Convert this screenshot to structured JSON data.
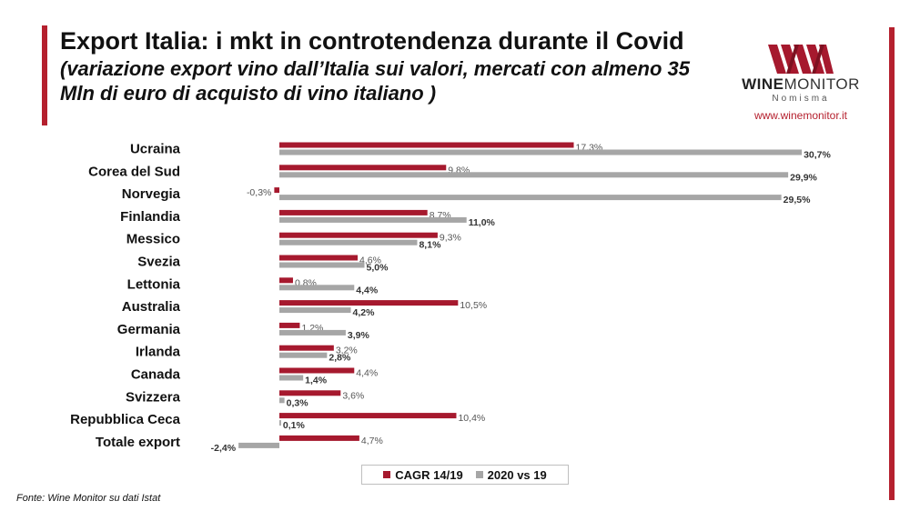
{
  "header": {
    "title": "Export Italia: i mkt in controtendenza durante il Covid",
    "subtitle": "(variazione export vino dall’Italia sui valori, mercati con almeno 35 Mln di euro di acquisto di vino italiano )"
  },
  "logo": {
    "name_bold": "WINE",
    "name_rest": "MONITOR",
    "sub": "Nomisma",
    "url": "www.winemonitor.it"
  },
  "source": "Fonte: Wine Monitor su dati Istat",
  "colors": {
    "cagr": "#a6192e",
    "vs19": "#a6a6a6",
    "accent": "#b5202e"
  },
  "chart_data": {
    "type": "bar",
    "orientation": "horizontal",
    "categories": [
      "Ucraina",
      "Corea del Sud",
      "Norvegia",
      "Finlandia",
      "Messico",
      "Svezia",
      "Lettonia",
      "Australia",
      "Germania",
      "Irlanda",
      "Canada",
      "Svizzera",
      "Repubblica Ceca",
      "Totale export"
    ],
    "series": [
      {
        "name": "CAGR 14/19",
        "values": [
          17.3,
          9.8,
          -0.3,
          8.7,
          9.3,
          4.6,
          0.8,
          10.5,
          1.2,
          3.2,
          4.4,
          3.6,
          10.4,
          4.7
        ],
        "labels": [
          "17,3%",
          "9,8%",
          "-0,3%",
          "8,7%",
          "9,3%",
          "4,6%",
          "0,8%",
          "10,5%",
          "1,2%",
          "3,2%",
          "4,4%",
          "3,6%",
          "10,4%",
          "4,7%"
        ]
      },
      {
        "name": "2020 vs 19",
        "values": [
          30.7,
          29.9,
          29.5,
          11.0,
          8.1,
          5.0,
          4.4,
          4.2,
          3.9,
          2.8,
          1.4,
          0.3,
          0.1,
          -2.4
        ],
        "labels": [
          "30,7%",
          "29,9%",
          "29,5%",
          "11,0%",
          "8,1%",
          "5,0%",
          "4,4%",
          "4,2%",
          "3,9%",
          "2,8%",
          "1,4%",
          "0,3%",
          "0,1%",
          "-2,4%"
        ]
      }
    ],
    "legend_position": "bottom",
    "grid": false
  }
}
